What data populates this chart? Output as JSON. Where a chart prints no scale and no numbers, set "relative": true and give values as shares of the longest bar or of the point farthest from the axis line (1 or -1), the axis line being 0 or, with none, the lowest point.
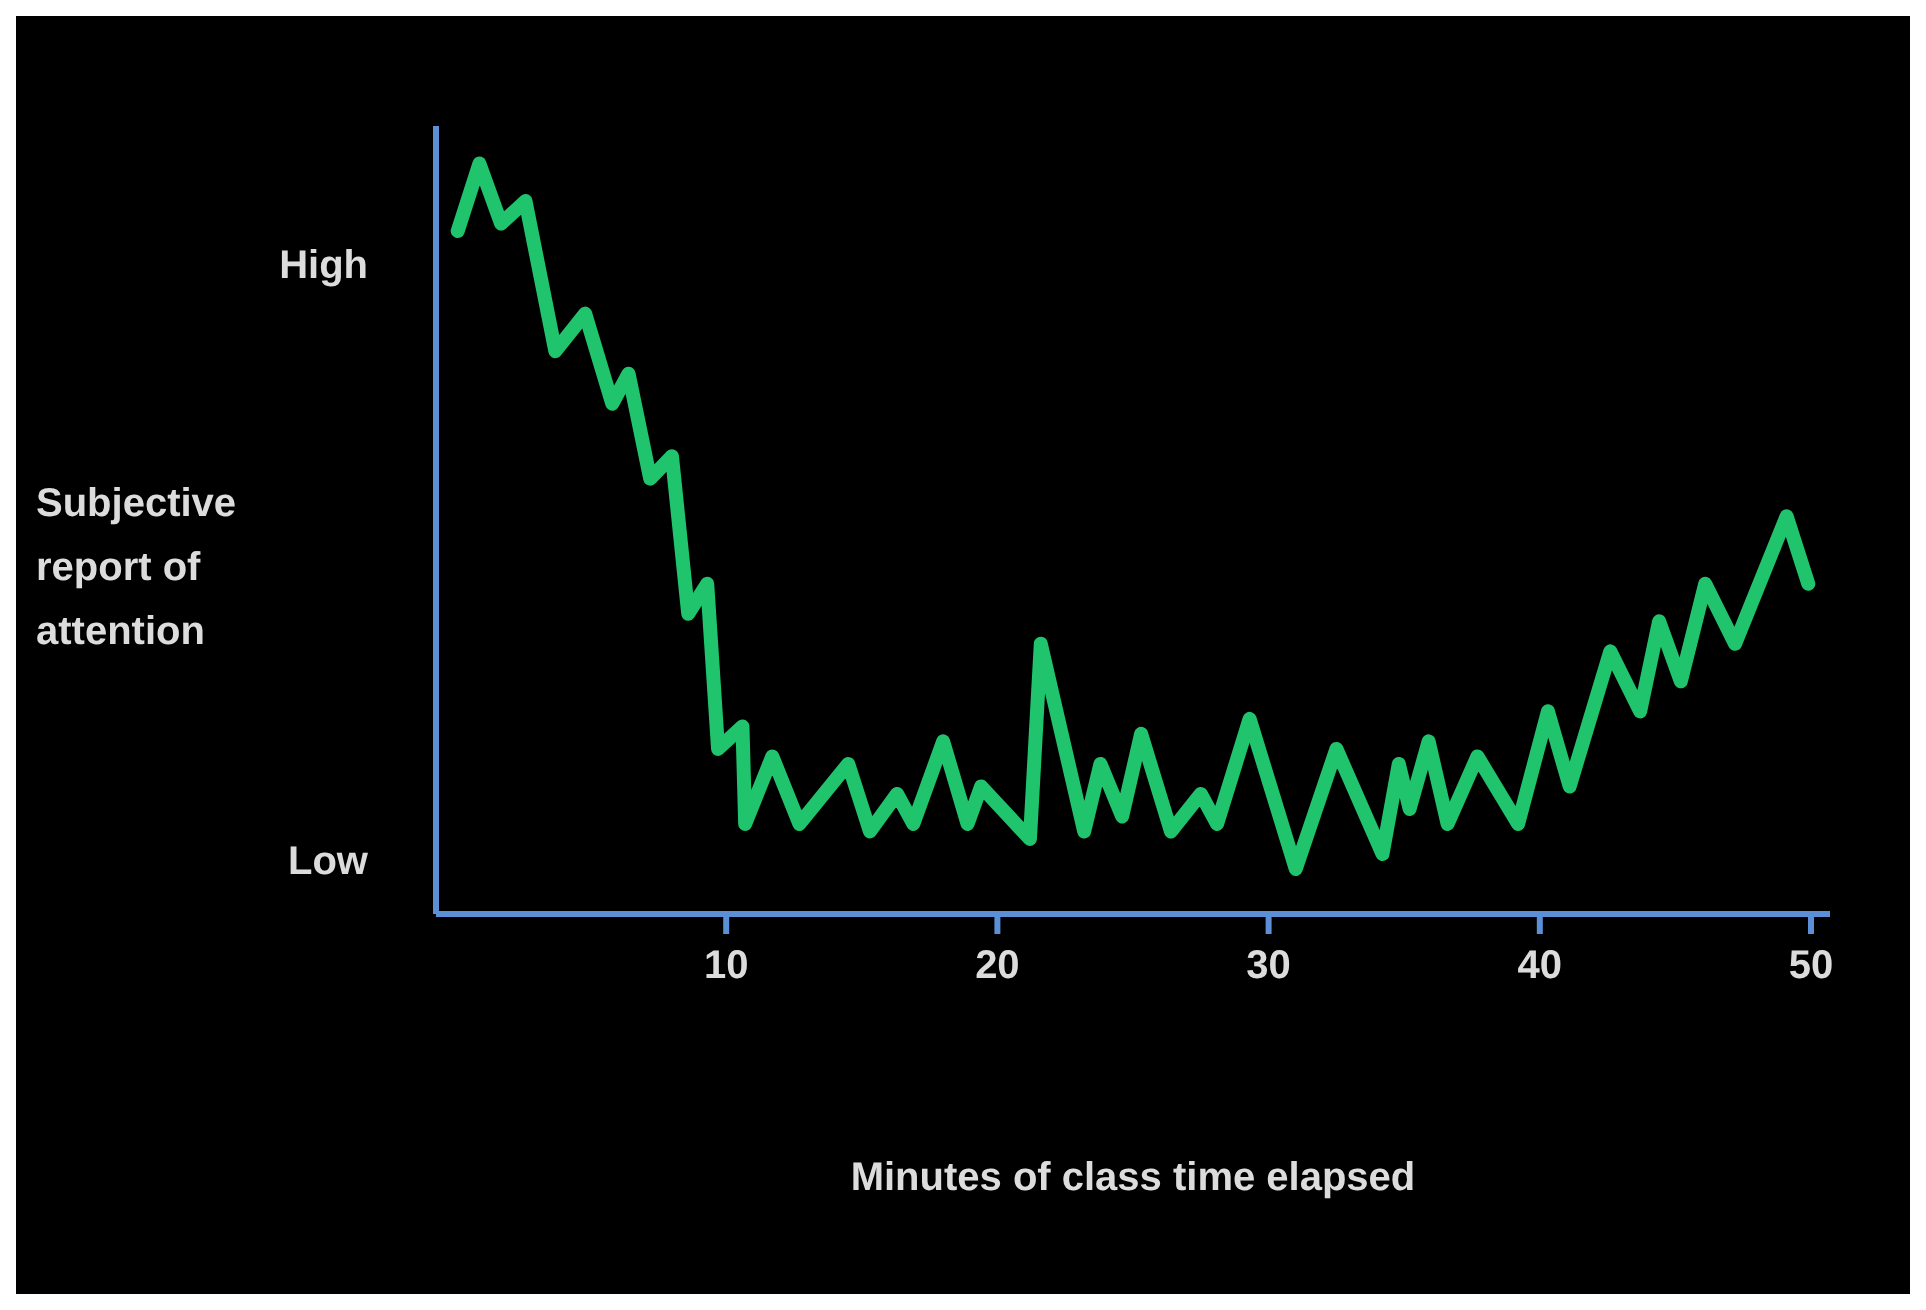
{
  "chart_data": {
    "type": "line",
    "xlabel": "Minutes of class time elapsed",
    "ylabel": "Subjective report of attention",
    "annotations": [
      "High",
      "Low"
    ],
    "relative": true,
    "x": [
      0.1,
      0.9,
      1.7,
      2.6,
      3.7,
      4.8,
      5.8,
      6.4,
      7.2,
      8.0,
      8.6,
      9.3,
      9.7,
      10.6,
      10.7,
      11.7,
      12.7,
      14.5,
      15.3,
      16.3,
      16.9,
      18,
      18.9,
      19.4,
      21.2,
      21.6,
      23.2,
      23.8,
      24.6,
      25.3,
      26.4,
      27.5,
      28.1,
      29.3,
      31,
      32.5,
      34.2,
      34.8,
      35.2,
      35.9,
      36.6,
      37.7,
      39.2,
      40.3,
      41.1,
      42.6,
      43.7,
      44.4,
      45.2,
      46.1,
      47.2,
      49.1,
      49.9
    ],
    "series": [
      {
        "color": "#1fc46c",
        "values": [
          0.91,
          1.0,
          0.92,
          0.95,
          0.75,
          0.8,
          0.68,
          0.72,
          0.58,
          0.61,
          0.4,
          0.44,
          0.22,
          0.25,
          0.12,
          0.21,
          0.12,
          0.2,
          0.11,
          0.16,
          0.12,
          0.23,
          0.12,
          0.17,
          0.1,
          0.36,
          0.11,
          0.2,
          0.13,
          0.24,
          0.11,
          0.16,
          0.12,
          0.26,
          0.06,
          0.22,
          0.08,
          0.2,
          0.14,
          0.23,
          0.12,
          0.21,
          0.12,
          0.27,
          0.17,
          0.35,
          0.27,
          0.39,
          0.31,
          0.44,
          0.36,
          0.53,
          0.44
        ]
      }
    ],
    "xlim": [
      -0.7,
      50.7
    ],
    "xticks": [
      10,
      20,
      30,
      40,
      50
    ],
    "line_style": "solid"
  }
}
